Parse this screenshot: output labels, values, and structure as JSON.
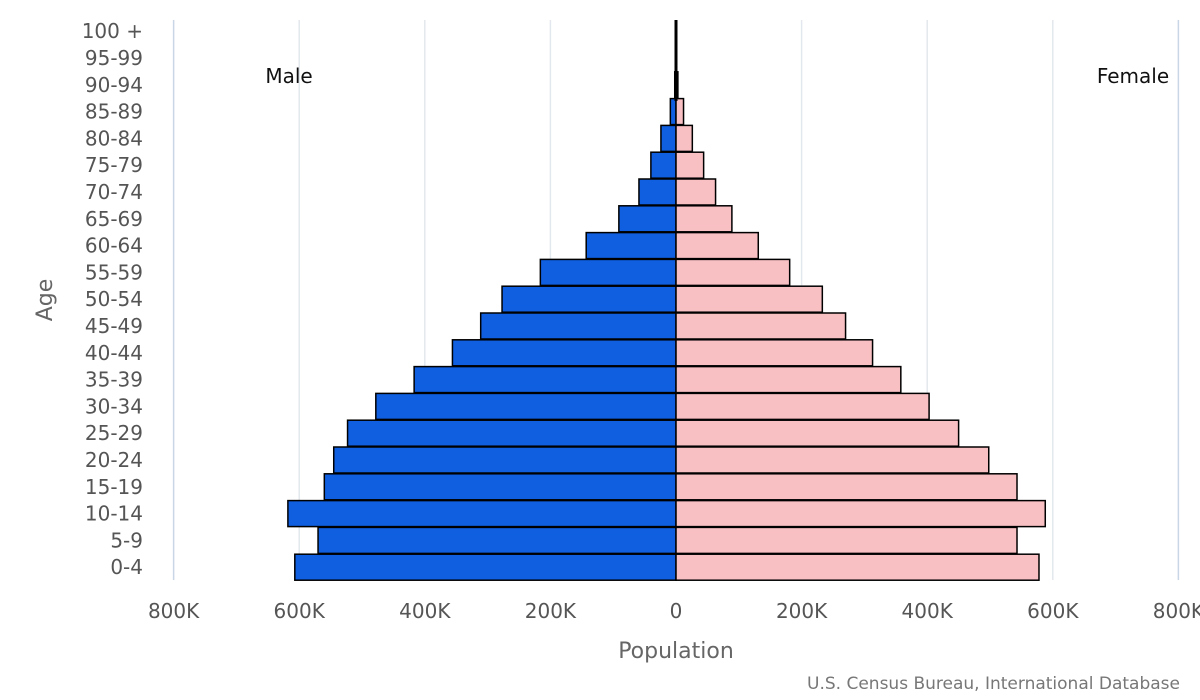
{
  "chart_data": {
    "type": "bar",
    "subtype": "population-pyramid",
    "orientation": "horizontal",
    "categories": [
      "0-4",
      "5-9",
      "10-14",
      "15-19",
      "20-24",
      "25-29",
      "30-34",
      "35-39",
      "40-44",
      "45-49",
      "50-54",
      "55-59",
      "60-64",
      "65-69",
      "70-74",
      "75-79",
      "80-84",
      "85-89",
      "90-94",
      "95-99",
      "100 +"
    ],
    "series": [
      {
        "name": "Male",
        "color": "#0f5fe0",
        "values": [
          607000,
          570000,
          618000,
          560000,
          545000,
          523000,
          478000,
          417000,
          356000,
          311000,
          277000,
          216000,
          143000,
          91000,
          59000,
          40000,
          24000,
          9000,
          2000,
          500,
          100
        ]
      },
      {
        "name": "Female",
        "color": "#f9c0c4",
        "values": [
          578000,
          543000,
          588000,
          543000,
          498000,
          450000,
          403000,
          358000,
          313000,
          270000,
          233000,
          181000,
          131000,
          89000,
          63000,
          44000,
          26000,
          12000,
          3000,
          700,
          100
        ]
      }
    ],
    "xlabel": "Population",
    "ylabel": "Age",
    "x_ticks": [
      "800K",
      "600K",
      "400K",
      "200K",
      "0",
      "200K",
      "400K",
      "600K",
      "800K"
    ],
    "xlim": [
      -800000,
      800000
    ],
    "grid": true,
    "source": "U.S. Census Bureau, International Database"
  }
}
